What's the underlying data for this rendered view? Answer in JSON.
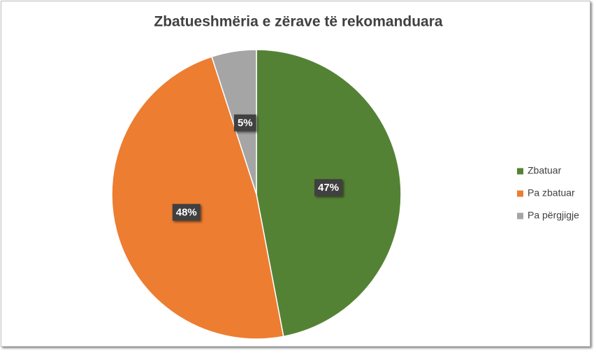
{
  "chart_data": {
    "type": "pie",
    "title": "Zbatueshmëria e zërave të rekomanduara",
    "categories": [
      "Zbatuar",
      "Pa zbatuar",
      "Pa përgjigje"
    ],
    "values": [
      47,
      48,
      5
    ],
    "value_labels": [
      "47%",
      "48%",
      "5%"
    ],
    "colors": [
      "#548235",
      "#ed7d31",
      "#a5a5a5"
    ],
    "legend": "right"
  }
}
